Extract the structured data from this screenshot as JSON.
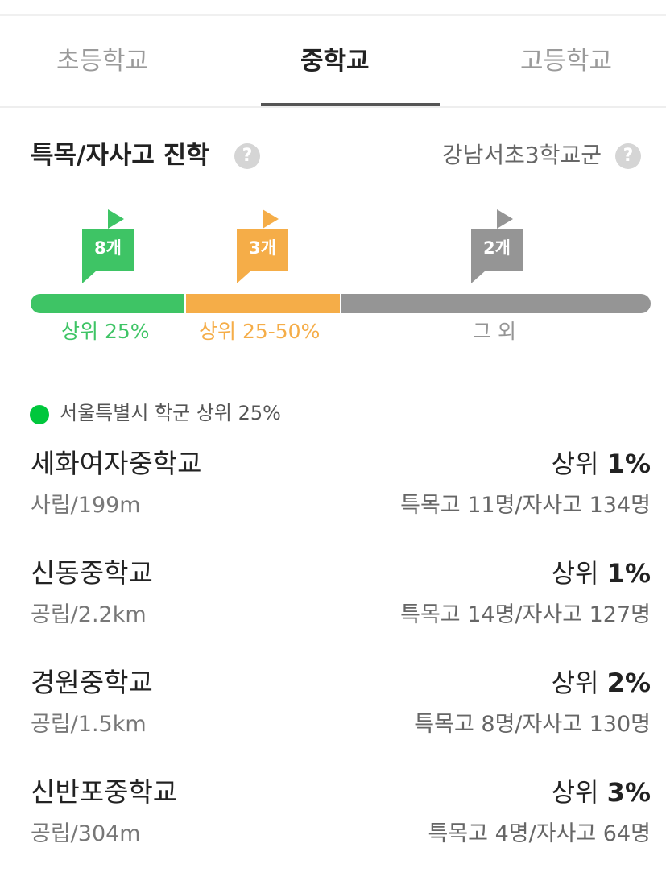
{
  "tabs": [
    {
      "label": "초등학교"
    },
    {
      "label": "중학교"
    },
    {
      "label": "고등학교"
    }
  ],
  "active_tab": "중학교",
  "section": {
    "title": "특목/자사고 진학",
    "help_glyph": "?",
    "district": "강남서초3학교군"
  },
  "distribution": {
    "flags": [
      {
        "count": "8개",
        "color": "#3ec465"
      },
      {
        "count": "3개",
        "color": "#f5ad48"
      },
      {
        "count": "2개",
        "color": "#959595"
      }
    ],
    "segments": [
      {
        "label": "상위 25%",
        "color": "#3ec465"
      },
      {
        "label": "상위 25-50%",
        "color": "#f5ad48"
      },
      {
        "label": "그 외",
        "color": "#959595"
      }
    ]
  },
  "legend": {
    "text": "서울특별시 학군 상위 25%",
    "color": "#00c73c"
  },
  "schools": [
    {
      "name": "세화여자중학교",
      "sub": "사립/199m",
      "rank_prefix": "상위",
      "rank_value": "1%",
      "stats": "특목고 11명/자사고 134명"
    },
    {
      "name": "신동중학교",
      "sub": "공립/2.2km",
      "rank_prefix": "상위",
      "rank_value": "1%",
      "stats": "특목고 14명/자사고 127명"
    },
    {
      "name": "경원중학교",
      "sub": "공립/1.5km",
      "rank_prefix": "상위",
      "rank_value": "2%",
      "stats": "특목고 8명/자사고 130명"
    },
    {
      "name": "신반포중학교",
      "sub": "공립/304m",
      "rank_prefix": "상위",
      "rank_value": "3%",
      "stats": "특목고 4명/자사고 64명"
    }
  ]
}
